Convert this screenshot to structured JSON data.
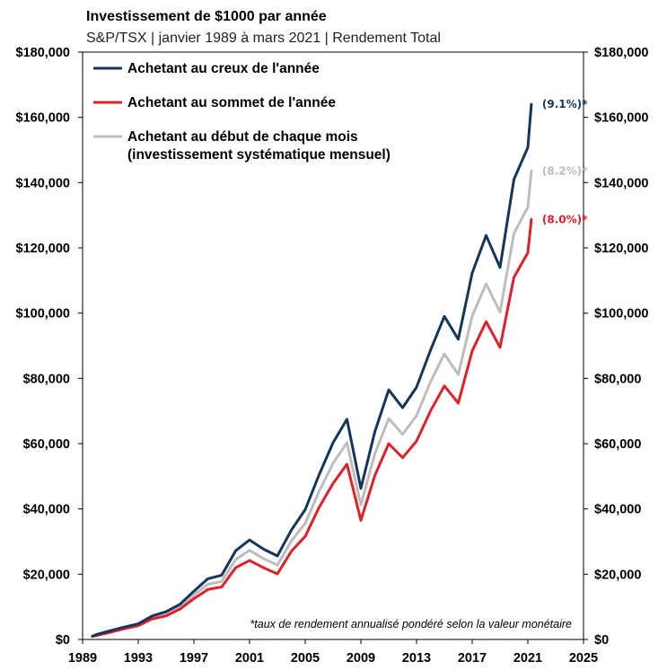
{
  "chart_data": {
    "type": "line",
    "title": "Investissement de $1000 par année",
    "subtitle": "S&P/TSX | janvier 1989 à mars 2021 | Rendement  Total",
    "xlim": [
      1989,
      2025
    ],
    "ylim": [
      0,
      180000
    ],
    "x_ticks": [
      1989,
      1993,
      1997,
      2001,
      2005,
      2009,
      2013,
      2017,
      2021,
      2025
    ],
    "y_ticks": [
      0,
      20000,
      40000,
      60000,
      80000,
      100000,
      120000,
      140000,
      160000,
      180000
    ],
    "y_tick_labels": [
      "$0",
      "$20,000",
      "$40,000",
      "$60,000",
      "$80,000",
      "$100,000",
      "$120,000",
      "$140,000",
      "$160,000",
      "$180,000"
    ],
    "grid": false,
    "legend_position": "top-left",
    "note": "*taux de rendement annualisé pondéré selon la valeur monétaire",
    "series": [
      {
        "name": "Achetant au creux de l'année",
        "color": "#14365c",
        "end_label": "(9.1%)*",
        "points": [
          [
            1989.7,
            1000
          ],
          [
            1990,
            1500
          ],
          [
            1991,
            2700
          ],
          [
            1992,
            3800
          ],
          [
            1993,
            4800
          ],
          [
            1994,
            7200
          ],
          [
            1995,
            8500
          ],
          [
            1996,
            10800
          ],
          [
            1997,
            14800
          ],
          [
            1998,
            18600
          ],
          [
            1999,
            19700
          ],
          [
            2000,
            27200
          ],
          [
            2001,
            30500
          ],
          [
            2002,
            27700
          ],
          [
            2003,
            25600
          ],
          [
            2004,
            33500
          ],
          [
            2005,
            39800
          ],
          [
            2006,
            50500
          ],
          [
            2007,
            60300
          ],
          [
            2008,
            67500
          ],
          [
            2009,
            46300
          ],
          [
            2010,
            63600
          ],
          [
            2011,
            76500
          ],
          [
            2012,
            71000
          ],
          [
            2013,
            77300
          ],
          [
            2014,
            88600
          ],
          [
            2015,
            99000
          ],
          [
            2016,
            92000
          ],
          [
            2017,
            112300
          ],
          [
            2018,
            123800
          ],
          [
            2019,
            114000
          ],
          [
            2020,
            141000
          ],
          [
            2021,
            150800
          ],
          [
            2021.25,
            164000
          ]
        ]
      },
      {
        "name": "Achetant au sommet de l'année",
        "color": "#e0202a",
        "end_label": "(8.0%)*",
        "points": [
          [
            1989.7,
            1000
          ],
          [
            1990,
            1200
          ],
          [
            1991,
            2200
          ],
          [
            1992,
            3300
          ],
          [
            1993,
            4200
          ],
          [
            1994,
            6300
          ],
          [
            1995,
            7200
          ],
          [
            1996,
            9300
          ],
          [
            1997,
            12500
          ],
          [
            1998,
            15300
          ],
          [
            1999,
            16100
          ],
          [
            2000,
            22000
          ],
          [
            2001,
            24200
          ],
          [
            2002,
            22000
          ],
          [
            2003,
            20100
          ],
          [
            2004,
            27000
          ],
          [
            2005,
            31600
          ],
          [
            2006,
            40500
          ],
          [
            2007,
            47800
          ],
          [
            2008,
            53700
          ],
          [
            2009,
            36500
          ],
          [
            2010,
            50200
          ],
          [
            2011,
            60000
          ],
          [
            2012,
            55700
          ],
          [
            2013,
            60800
          ],
          [
            2014,
            70000
          ],
          [
            2015,
            77700
          ],
          [
            2016,
            72400
          ],
          [
            2017,
            88400
          ],
          [
            2018,
            97400
          ],
          [
            2019,
            89500
          ],
          [
            2020,
            111000
          ],
          [
            2021,
            118500
          ],
          [
            2021.25,
            128700
          ]
        ]
      },
      {
        "name": "Achetant au début de chaque mois (investissement systématique mensuel)",
        "label_lines": [
          "Achetant au début de chaque mois",
          "(investissement systématique mensuel)"
        ],
        "color": "#bdbdbd",
        "end_label": "(8.2%)*",
        "points": [
          [
            1989.7,
            1000
          ],
          [
            1990,
            1300
          ],
          [
            1991,
            2400
          ],
          [
            1992,
            3500
          ],
          [
            1993,
            4500
          ],
          [
            1994,
            6700
          ],
          [
            1995,
            7800
          ],
          [
            1996,
            10000
          ],
          [
            1997,
            13600
          ],
          [
            1998,
            16900
          ],
          [
            1999,
            17800
          ],
          [
            2000,
            24500
          ],
          [
            2001,
            27300
          ],
          [
            2002,
            24800
          ],
          [
            2003,
            22800
          ],
          [
            2004,
            30200
          ],
          [
            2005,
            35600
          ],
          [
            2006,
            45400
          ],
          [
            2007,
            54000
          ],
          [
            2008,
            60300
          ],
          [
            2009,
            41200
          ],
          [
            2010,
            56900
          ],
          [
            2011,
            67700
          ],
          [
            2012,
            62900
          ],
          [
            2013,
            68600
          ],
          [
            2014,
            78900
          ],
          [
            2015,
            87500
          ],
          [
            2016,
            81200
          ],
          [
            2017,
            99100
          ],
          [
            2018,
            109000
          ],
          [
            2019,
            100300
          ],
          [
            2020,
            124400
          ],
          [
            2021,
            132500
          ],
          [
            2021.25,
            143600
          ]
        ]
      }
    ]
  }
}
